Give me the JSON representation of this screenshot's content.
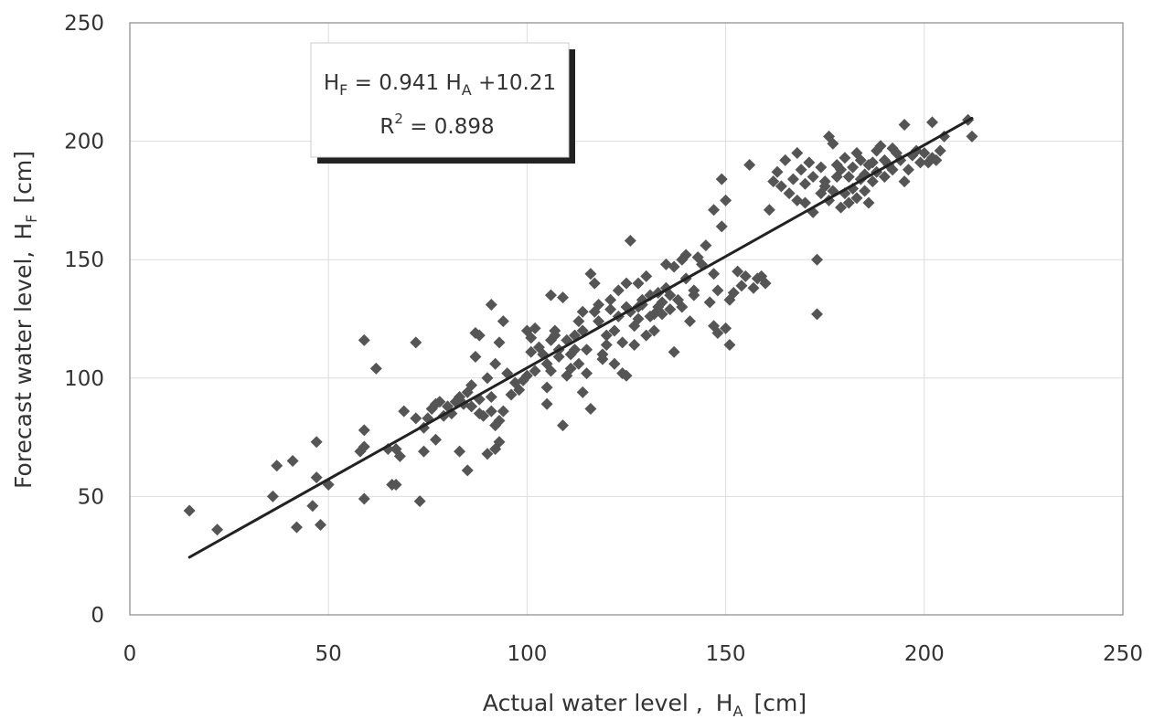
{
  "chart_data": {
    "type": "scatter",
    "xlabel": {
      "main": "Actual water level ,",
      "symbol": "H",
      "subscript": "A",
      "unit": "[cm]"
    },
    "ylabel": {
      "main": "Forecast water level,",
      "symbol": "H",
      "subscript": "F",
      "unit": "[cm]"
    },
    "xlim": [
      0,
      250
    ],
    "ylim": [
      0,
      250
    ],
    "xticks": [
      0,
      50,
      100,
      150,
      200,
      250
    ],
    "yticks": [
      0,
      50,
      100,
      150,
      200,
      250
    ],
    "grid": true,
    "marker": "diamond",
    "marker_color": "#555555",
    "line_color": "#222222",
    "annotation": {
      "line1": {
        "lhs": "H",
        "lhs_sub": "F",
        "eq": " = 0.941 ",
        "rhs": "H",
        "rhs_sub": "A",
        "tail": " +10.21"
      },
      "line2": {
        "base": "R",
        "sup": "2",
        "tail": " = 0.898"
      }
    },
    "regression": {
      "slope": 0.941,
      "intercept": 10.21,
      "x_range": [
        15,
        212
      ]
    },
    "points": [
      [
        15,
        44
      ],
      [
        22,
        36
      ],
      [
        36,
        50
      ],
      [
        37,
        63
      ],
      [
        41,
        65
      ],
      [
        42,
        37
      ],
      [
        46,
        46
      ],
      [
        47,
        73
      ],
      [
        47,
        58
      ],
      [
        48,
        38
      ],
      [
        50,
        55
      ],
      [
        58,
        69
      ],
      [
        59,
        71
      ],
      [
        59,
        78
      ],
      [
        59,
        49
      ],
      [
        59,
        116
      ],
      [
        62,
        104
      ],
      [
        65,
        70
      ],
      [
        66,
        55
      ],
      [
        67,
        55
      ],
      [
        67,
        70
      ],
      [
        68,
        67
      ],
      [
        69,
        86
      ],
      [
        72,
        83
      ],
      [
        72,
        115
      ],
      [
        73,
        48
      ],
      [
        74,
        69
      ],
      [
        74,
        79
      ],
      [
        75,
        83
      ],
      [
        76,
        87
      ],
      [
        77,
        89
      ],
      [
        77,
        74
      ],
      [
        78,
        90
      ],
      [
        79,
        84
      ],
      [
        80,
        88
      ],
      [
        81,
        85
      ],
      [
        82,
        90
      ],
      [
        83,
        69
      ],
      [
        83,
        92
      ],
      [
        84,
        89
      ],
      [
        85,
        94
      ],
      [
        85,
        61
      ],
      [
        86,
        88
      ],
      [
        86,
        97
      ],
      [
        87,
        119
      ],
      [
        87,
        109
      ],
      [
        88,
        118
      ],
      [
        88,
        91
      ],
      [
        88,
        85
      ],
      [
        89,
        84
      ],
      [
        90,
        68
      ],
      [
        90,
        100
      ],
      [
        91,
        131
      ],
      [
        91,
        92
      ],
      [
        91,
        86
      ],
      [
        92,
        80
      ],
      [
        92,
        70
      ],
      [
        92,
        106
      ],
      [
        93,
        73
      ],
      [
        93,
        115
      ],
      [
        93,
        82
      ],
      [
        94,
        124
      ],
      [
        94,
        86
      ],
      [
        95,
        102
      ],
      [
        96,
        93
      ],
      [
        97,
        98
      ],
      [
        98,
        95
      ],
      [
        99,
        99
      ],
      [
        100,
        120
      ],
      [
        100,
        101
      ],
      [
        101,
        111
      ],
      [
        101,
        117
      ],
      [
        102,
        103
      ],
      [
        102,
        121
      ],
      [
        103,
        113
      ],
      [
        104,
        110
      ],
      [
        105,
        106
      ],
      [
        105,
        96
      ],
      [
        105,
        89
      ],
      [
        106,
        116
      ],
      [
        106,
        103
      ],
      [
        106,
        135
      ],
      [
        107,
        118
      ],
      [
        107,
        120
      ],
      [
        108,
        112
      ],
      [
        108,
        109
      ],
      [
        109,
        134
      ],
      [
        109,
        80
      ],
      [
        110,
        116
      ],
      [
        110,
        101
      ],
      [
        111,
        110
      ],
      [
        111,
        104
      ],
      [
        112,
        112
      ],
      [
        112,
        118
      ],
      [
        113,
        124
      ],
      [
        113,
        106
      ],
      [
        114,
        128
      ],
      [
        114,
        120
      ],
      [
        114,
        94
      ],
      [
        115,
        102
      ],
      [
        115,
        112
      ],
      [
        116,
        87
      ],
      [
        116,
        144
      ],
      [
        117,
        140
      ],
      [
        117,
        128
      ],
      [
        118,
        124
      ],
      [
        118,
        131
      ],
      [
        119,
        108
      ],
      [
        119,
        110
      ],
      [
        120,
        118
      ],
      [
        120,
        114
      ],
      [
        121,
        129
      ],
      [
        121,
        133
      ],
      [
        122,
        120
      ],
      [
        122,
        106
      ],
      [
        123,
        126
      ],
      [
        123,
        137
      ],
      [
        124,
        102
      ],
      [
        124,
        115
      ],
      [
        125,
        101
      ],
      [
        125,
        140
      ],
      [
        125,
        130
      ],
      [
        126,
        128
      ],
      [
        126,
        158
      ],
      [
        127,
        122
      ],
      [
        127,
        114
      ],
      [
        128,
        130
      ],
      [
        128,
        140
      ],
      [
        128,
        125
      ],
      [
        129,
        131
      ],
      [
        129,
        133
      ],
      [
        130,
        118
      ],
      [
        130,
        143
      ],
      [
        131,
        126
      ],
      [
        131,
        135
      ],
      [
        132,
        127
      ],
      [
        132,
        120
      ],
      [
        133,
        136
      ],
      [
        133,
        130
      ],
      [
        134,
        132
      ],
      [
        134,
        127
      ],
      [
        135,
        148
      ],
      [
        135,
        138
      ],
      [
        136,
        135
      ],
      [
        136,
        129
      ],
      [
        137,
        147
      ],
      [
        137,
        111
      ],
      [
        138,
        133
      ],
      [
        139,
        130
      ],
      [
        139,
        150
      ],
      [
        140,
        152
      ],
      [
        140,
        142
      ],
      [
        141,
        124
      ],
      [
        142,
        137
      ],
      [
        142,
        135
      ],
      [
        143,
        151
      ],
      [
        144,
        148
      ],
      [
        145,
        156
      ],
      [
        146,
        132
      ],
      [
        147,
        122
      ],
      [
        147,
        171
      ],
      [
        147,
        144
      ],
      [
        148,
        137
      ],
      [
        148,
        119
      ],
      [
        149,
        184
      ],
      [
        149,
        164
      ],
      [
        150,
        175
      ],
      [
        150,
        121
      ],
      [
        151,
        114
      ],
      [
        151,
        133
      ],
      [
        152,
        136
      ],
      [
        153,
        145
      ],
      [
        154,
        139
      ],
      [
        155,
        143
      ],
      [
        156,
        190
      ],
      [
        157,
        138
      ],
      [
        158,
        142
      ],
      [
        159,
        143
      ],
      [
        160,
        140
      ],
      [
        161,
        171
      ],
      [
        162,
        183
      ],
      [
        163,
        187
      ],
      [
        164,
        181
      ],
      [
        165,
        192
      ],
      [
        166,
        178
      ],
      [
        167,
        184
      ],
      [
        168,
        175
      ],
      [
        168,
        195
      ],
      [
        169,
        188
      ],
      [
        170,
        182
      ],
      [
        170,
        174
      ],
      [
        171,
        191
      ],
      [
        172,
        185
      ],
      [
        172,
        170
      ],
      [
        173,
        150
      ],
      [
        173,
        127
      ],
      [
        174,
        178
      ],
      [
        174,
        189
      ],
      [
        175,
        181
      ],
      [
        175,
        183
      ],
      [
        176,
        175
      ],
      [
        176,
        202
      ],
      [
        177,
        199
      ],
      [
        177,
        179
      ],
      [
        178,
        185
      ],
      [
        178,
        190
      ],
      [
        179,
        172
      ],
      [
        179,
        188
      ],
      [
        180,
        178
      ],
      [
        180,
        193
      ],
      [
        181,
        174
      ],
      [
        181,
        185
      ],
      [
        182,
        180
      ],
      [
        182,
        189
      ],
      [
        183,
        195
      ],
      [
        183,
        176
      ],
      [
        184,
        184
      ],
      [
        184,
        192
      ],
      [
        185,
        186
      ],
      [
        185,
        179
      ],
      [
        186,
        174
      ],
      [
        186,
        190
      ],
      [
        187,
        191
      ],
      [
        187,
        183
      ],
      [
        188,
        196
      ],
      [
        188,
        187
      ],
      [
        189,
        198
      ],
      [
        190,
        192
      ],
      [
        190,
        185
      ],
      [
        191,
        190
      ],
      [
        192,
        188
      ],
      [
        192,
        197
      ],
      [
        193,
        195
      ],
      [
        194,
        192
      ],
      [
        195,
        183
      ],
      [
        195,
        207
      ],
      [
        196,
        188
      ],
      [
        197,
        194
      ],
      [
        198,
        196
      ],
      [
        199,
        191
      ],
      [
        200,
        195
      ],
      [
        201,
        191
      ],
      [
        202,
        208
      ],
      [
        202,
        193
      ],
      [
        203,
        192
      ],
      [
        204,
        196
      ],
      [
        205,
        202
      ],
      [
        211,
        209
      ],
      [
        212,
        202
      ]
    ]
  }
}
